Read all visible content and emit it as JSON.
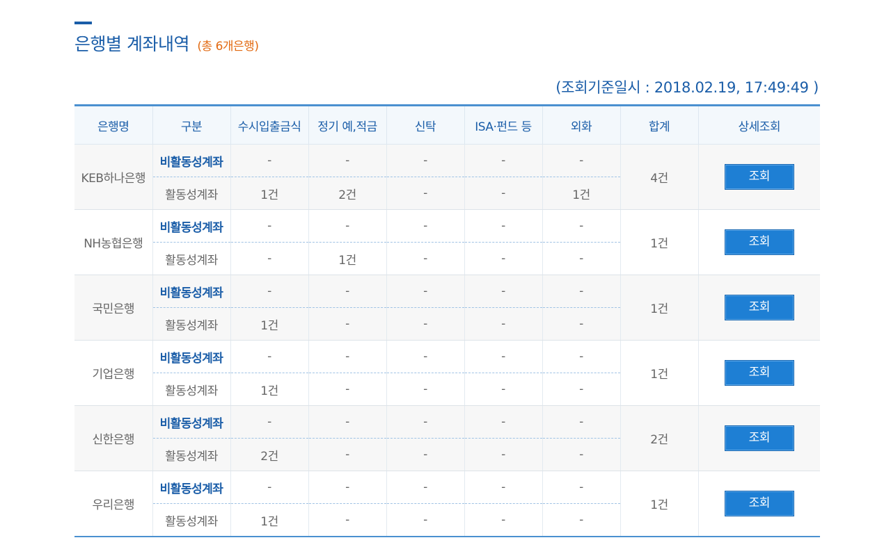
{
  "header": {
    "title": "은행별 계좌내역",
    "subtitle": "(총 6개은행)",
    "inquiry_time": "(조회기준일시 : 2018.02.19, 17:49:49 )"
  },
  "columns": [
    "은행명",
    "구분",
    "수시입출금식",
    "정기 예,적금",
    "신탁",
    "ISA·펀드 등",
    "외화",
    "합계",
    "상세조회"
  ],
  "banks": [
    {
      "name": "KEB하나은행",
      "inactive_label": "비활동성계좌",
      "inactive": [
        "-",
        "-",
        "-",
        "-",
        "-"
      ],
      "active_label": "활동성계좌",
      "active": [
        "1건",
        "2건",
        "-",
        "-",
        "1건"
      ],
      "total": "4건",
      "button": "조회"
    },
    {
      "name": "NH농협은행",
      "inactive_label": "비활동성계좌",
      "inactive": [
        "-",
        "-",
        "-",
        "-",
        "-"
      ],
      "active_label": "활동성계좌",
      "active": [
        "-",
        "1건",
        "-",
        "-",
        "-"
      ],
      "total": "1건",
      "button": "조회"
    },
    {
      "name": "국민은행",
      "inactive_label": "비활동성계좌",
      "inactive": [
        "-",
        "-",
        "-",
        "-",
        "-"
      ],
      "active_label": "활동성계좌",
      "active": [
        "1건",
        "-",
        "-",
        "-",
        "-"
      ],
      "total": "1건",
      "button": "조회"
    },
    {
      "name": "기업은행",
      "inactive_label": "비활동성계좌",
      "inactive": [
        "-",
        "-",
        "-",
        "-",
        "-"
      ],
      "active_label": "활동성계좌",
      "active": [
        "1건",
        "-",
        "-",
        "-",
        "-"
      ],
      "total": "1건",
      "button": "조회"
    },
    {
      "name": "신한은행",
      "inactive_label": "비활동성계좌",
      "inactive": [
        "-",
        "-",
        "-",
        "-",
        "-"
      ],
      "active_label": "활동성계좌",
      "active": [
        "2건",
        "-",
        "-",
        "-",
        "-"
      ],
      "total": "2건",
      "button": "조회"
    },
    {
      "name": "우리은행",
      "inactive_label": "비활동성계좌",
      "inactive": [
        "-",
        "-",
        "-",
        "-",
        "-"
      ],
      "active_label": "활동성계좌",
      "active": [
        "1건",
        "-",
        "-",
        "-",
        "-"
      ],
      "total": "1건",
      "button": "조회"
    }
  ],
  "colors": {
    "accent": "#1a5da8",
    "button": "#1e7fd4",
    "subtitle": "#e26a12"
  }
}
